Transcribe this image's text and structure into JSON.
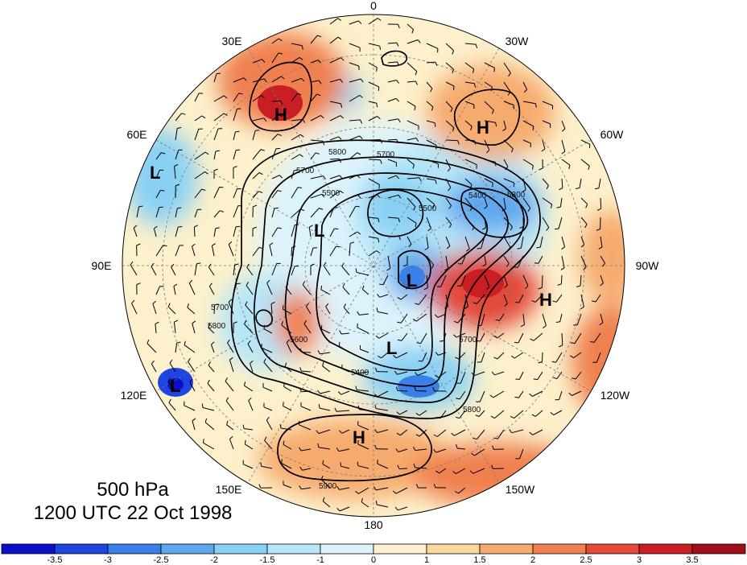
{
  "caption": {
    "level": "500 hPa",
    "time": "1200 UTC 22 Oct 1998"
  },
  "longitude_labels": {
    "n0": "0",
    "n30e": "30E",
    "n30w": "30W",
    "n60e": "60E",
    "n60w": "60W",
    "n90e": "90E",
    "n90w": "90W",
    "n120e": "120E",
    "n120w": "120W",
    "n150e": "150E",
    "n150w": "150W",
    "n180": "180"
  },
  "pressure_centers": [
    {
      "type": "H"
    },
    {
      "type": "H"
    },
    {
      "type": "H"
    },
    {
      "type": "H"
    },
    {
      "type": "L"
    },
    {
      "type": "L"
    },
    {
      "type": "L"
    },
    {
      "type": "L"
    },
    {
      "type": "L"
    }
  ],
  "contour_labels": [
    "5800",
    "5700",
    "5500",
    "5400",
    "5500",
    "5800",
    "5700",
    "5700",
    "5800",
    "5600",
    "5400",
    "5700",
    "5800",
    "5900"
  ],
  "colorbar": {
    "ticks": [
      "-3.5",
      "-3",
      "-2.5",
      "-2",
      "-1.5",
      "-1",
      "0",
      "1",
      "1.5",
      "2",
      "2.5",
      "3",
      "3.5"
    ],
    "colors": [
      "#0b10c8",
      "#1f45e0",
      "#3b7fe8",
      "#5ea8ee",
      "#88d0f4",
      "#b6e6f8",
      "#ddf3fb",
      "#fcf1cc",
      "#fad79a",
      "#f6ab6e",
      "#f08050",
      "#e24a3a",
      "#c81e24",
      "#a00c18"
    ]
  }
}
